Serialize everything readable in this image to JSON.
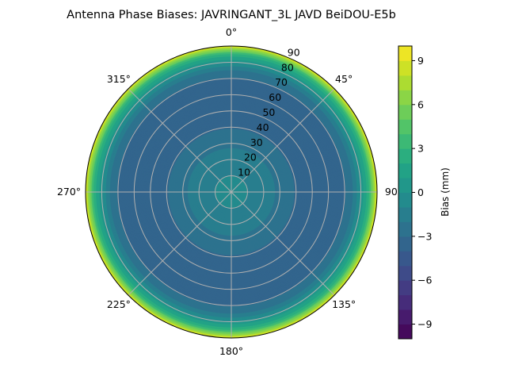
{
  "chart_data": {
    "type": "polar-contour",
    "title": "Antenna Phase Biases: JAVRINGANT_3L   JAVD BeiDOU-E5b",
    "colormap": "viridis",
    "angular_ticks": [
      "0°",
      "45°",
      "90°",
      "135°",
      "180°",
      "225°",
      "270°",
      "315°"
    ],
    "radial_ticks": [
      "10",
      "20",
      "30",
      "40",
      "50",
      "60",
      "70",
      "80",
      "90"
    ],
    "radial_range": [
      0,
      90
    ],
    "grid": true,
    "profile_zenith": [
      0,
      10,
      20,
      30,
      40,
      50,
      60,
      70,
      75,
      80,
      85,
      90
    ],
    "profile_bias": [
      -0.8,
      -1,
      -1.5,
      -2.2,
      -3.1,
      -3.6,
      -3.6,
      -3.1,
      -2,
      0,
      3,
      9
    ],
    "colorbar": {
      "label": "Bias (mm)",
      "range": [
        -10,
        10
      ],
      "levels": 20,
      "ticks": [
        "−9",
        "−6",
        "−3",
        "0",
        "3",
        "6",
        "9"
      ],
      "tick_values": [
        -9,
        -6,
        -3,
        0,
        3,
        6,
        9
      ]
    }
  }
}
